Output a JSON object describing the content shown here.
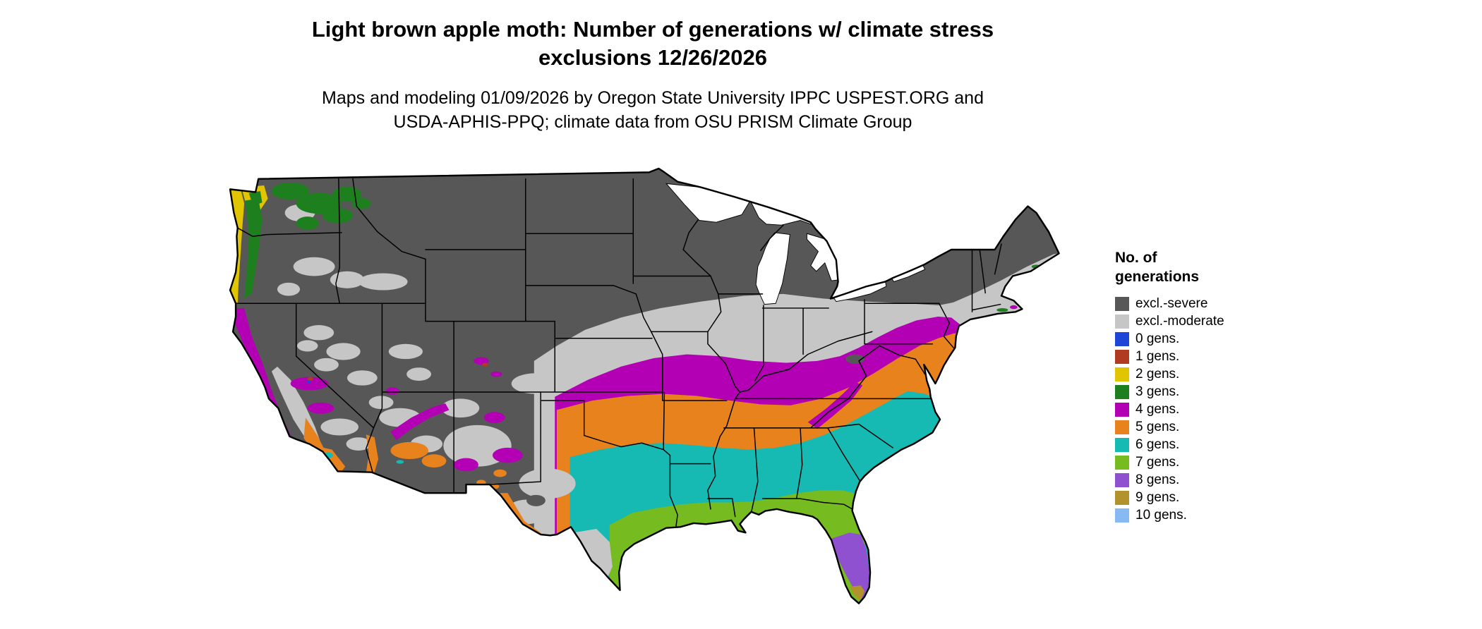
{
  "title": {
    "line1": "Light brown apple moth: Number of generations w/ climate stress",
    "line2": "exclusions 12/26/2026"
  },
  "subtitle": {
    "line1": "Maps and modeling 01/09/2026 by Oregon State University IPPC USPEST.ORG and",
    "line2": "USDA-APHIS-PPQ; climate data from OSU PRISM Climate Group"
  },
  "legend": {
    "title_line1": "No. of",
    "title_line2": "generations",
    "items": [
      {
        "label": "excl.-severe",
        "color": "#575757"
      },
      {
        "label": "excl.-moderate",
        "color": "#c6c6c6"
      },
      {
        "label": "0 gens.",
        "color": "#1f45d8"
      },
      {
        "label": "1 gens.",
        "color": "#b03a22"
      },
      {
        "label": "2 gens.",
        "color": "#e0c500"
      },
      {
        "label": "3 gens.",
        "color": "#1e7f1e"
      },
      {
        "label": "4 gens.",
        "color": "#b400b4"
      },
      {
        "label": "5 gens.",
        "color": "#e8821c"
      },
      {
        "label": "6 gens.",
        "color": "#16bab2"
      },
      {
        "label": "7 gens.",
        "color": "#76bb1f"
      },
      {
        "label": "8 gens.",
        "color": "#9051d0"
      },
      {
        "label": "9 gens.",
        "color": "#b2922c"
      },
      {
        "label": "10 gens.",
        "color": "#87baf2"
      }
    ]
  }
}
